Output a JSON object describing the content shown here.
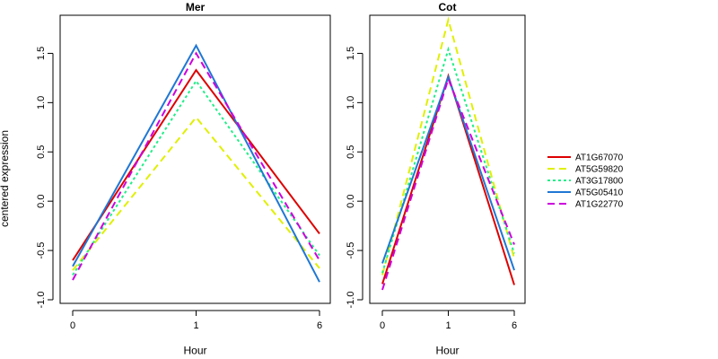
{
  "chart_data": {
    "type": "line",
    "ylabel": "centered expression",
    "xlabel": "Hour",
    "x_ticks": [
      "0",
      "1",
      "6"
    ],
    "y_ticks": [
      "-1.0",
      "-0.5",
      "0.0",
      "0.5",
      "1.0",
      "1.5"
    ],
    "legend_position": "right",
    "series_styles": [
      {
        "name": "AT1G67070",
        "color": "#dd0000",
        "dash": "solid"
      },
      {
        "name": "AT5G59820",
        "color": "#e0f000",
        "dash": "dashed"
      },
      {
        "name": "AT3G17800",
        "color": "#22ee88",
        "dash": "dotted"
      },
      {
        "name": "AT5G05410",
        "color": "#1f77d4",
        "dash": "solid"
      },
      {
        "name": "AT1G22770",
        "color": "#cc00dd",
        "dash": "dashed"
      }
    ],
    "panels": [
      {
        "title": "Mer",
        "ylim": [
          -1.0,
          1.85
        ],
        "series": [
          {
            "name": "AT1G67070",
            "values": [
              -0.6,
              1.33,
              -0.33
            ]
          },
          {
            "name": "AT5G59820",
            "values": [
              -0.7,
              0.85,
              -0.68
            ]
          },
          {
            "name": "AT3G17800",
            "values": [
              -0.75,
              1.22,
              -0.55
            ]
          },
          {
            "name": "AT5G05410",
            "values": [
              -0.66,
              1.58,
              -0.82
            ]
          },
          {
            "name": "AT1G22770",
            "values": [
              -0.8,
              1.5,
              -0.6
            ]
          }
        ]
      },
      {
        "title": "Cot",
        "ylim": [
          -1.0,
          1.85
        ],
        "series": [
          {
            "name": "AT1G67070",
            "values": [
              -0.84,
              1.27,
              -0.85
            ]
          },
          {
            "name": "AT5G59820",
            "values": [
              -0.75,
              1.84,
              -0.58
            ]
          },
          {
            "name": "AT3G17800",
            "values": [
              -0.73,
              1.54,
              -0.53
            ]
          },
          {
            "name": "AT5G05410",
            "values": [
              -0.63,
              1.26,
              -0.7
            ]
          },
          {
            "name": "AT1G22770",
            "values": [
              -0.9,
              1.24,
              -0.44
            ]
          }
        ]
      }
    ]
  }
}
